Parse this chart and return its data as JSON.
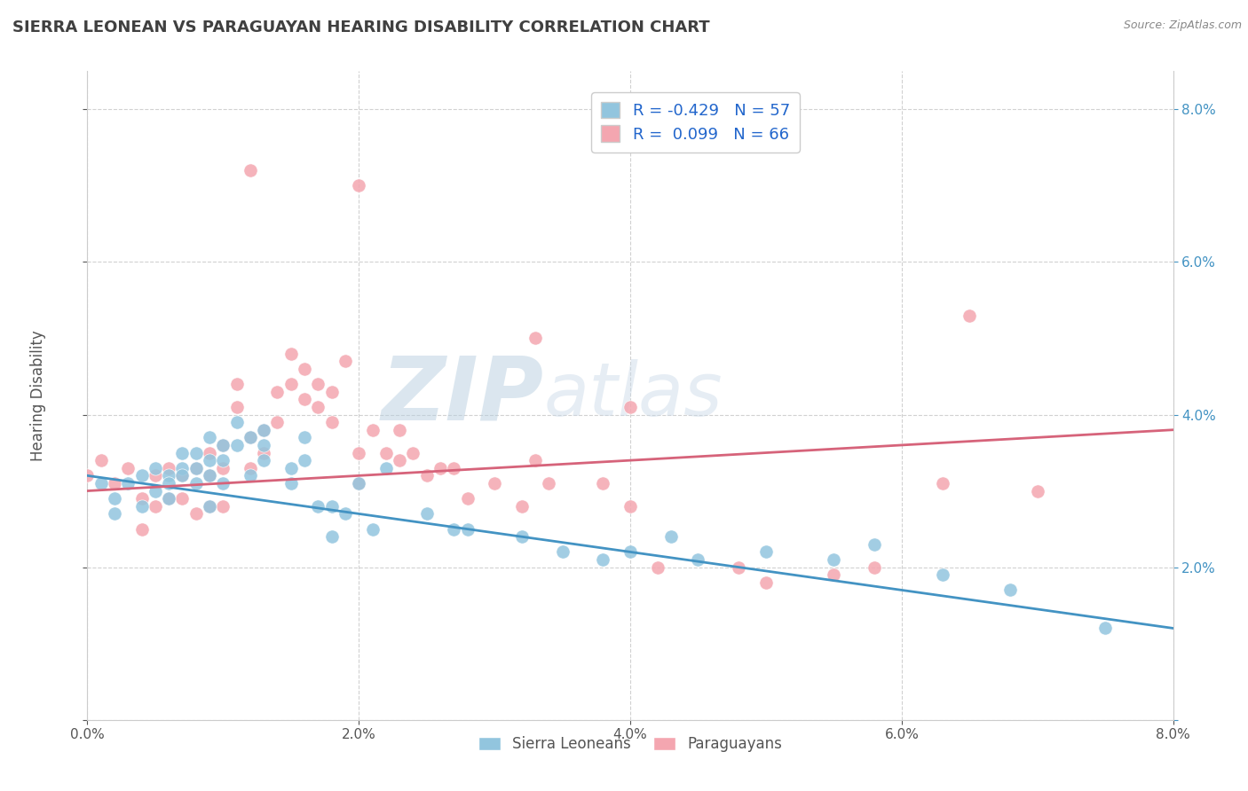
{
  "title": "SIERRA LEONEAN VS PARAGUAYAN HEARING DISABILITY CORRELATION CHART",
  "source": "Source: ZipAtlas.com",
  "ylabel": "Hearing Disability",
  "x_min": 0.0,
  "x_max": 0.08,
  "y_min": 0.0,
  "y_max": 0.085,
  "sierra_color": "#92c5de",
  "paraguayan_color": "#f4a6b0",
  "sierra_line_color": "#4393c3",
  "paraguayan_line_color": "#d6637a",
  "sierra_R": -0.429,
  "sierra_N": 57,
  "paraguayan_R": 0.099,
  "paraguayan_N": 66,
  "background_color": "#ffffff",
  "grid_color": "#cccccc",
  "title_color": "#404040",
  "watermark_color": "#c8d8e8",
  "sierra_x": [
    0.001,
    0.002,
    0.002,
    0.003,
    0.004,
    0.004,
    0.005,
    0.005,
    0.006,
    0.006,
    0.006,
    0.007,
    0.007,
    0.007,
    0.008,
    0.008,
    0.008,
    0.009,
    0.009,
    0.009,
    0.009,
    0.01,
    0.01,
    0.01,
    0.011,
    0.011,
    0.012,
    0.012,
    0.013,
    0.013,
    0.013,
    0.015,
    0.015,
    0.016,
    0.016,
    0.017,
    0.018,
    0.018,
    0.019,
    0.02,
    0.021,
    0.022,
    0.025,
    0.027,
    0.028,
    0.032,
    0.035,
    0.038,
    0.04,
    0.043,
    0.045,
    0.05,
    0.055,
    0.058,
    0.063,
    0.068,
    0.075
  ],
  "sierra_y": [
    0.031,
    0.029,
    0.027,
    0.031,
    0.032,
    0.028,
    0.033,
    0.03,
    0.032,
    0.031,
    0.029,
    0.035,
    0.033,
    0.032,
    0.035,
    0.033,
    0.031,
    0.037,
    0.034,
    0.032,
    0.028,
    0.036,
    0.034,
    0.031,
    0.039,
    0.036,
    0.037,
    0.032,
    0.038,
    0.036,
    0.034,
    0.033,
    0.031,
    0.037,
    0.034,
    0.028,
    0.028,
    0.024,
    0.027,
    0.031,
    0.025,
    0.033,
    0.027,
    0.025,
    0.025,
    0.024,
    0.022,
    0.021,
    0.022,
    0.024,
    0.021,
    0.022,
    0.021,
    0.023,
    0.019,
    0.017,
    0.012
  ],
  "paraguayan_x": [
    0.0,
    0.001,
    0.002,
    0.003,
    0.004,
    0.004,
    0.005,
    0.005,
    0.006,
    0.006,
    0.007,
    0.007,
    0.008,
    0.008,
    0.009,
    0.009,
    0.009,
    0.01,
    0.01,
    0.01,
    0.011,
    0.011,
    0.012,
    0.012,
    0.013,
    0.013,
    0.014,
    0.014,
    0.015,
    0.015,
    0.016,
    0.016,
    0.017,
    0.017,
    0.018,
    0.018,
    0.019,
    0.02,
    0.02,
    0.021,
    0.022,
    0.023,
    0.023,
    0.024,
    0.025,
    0.026,
    0.027,
    0.028,
    0.03,
    0.032,
    0.033,
    0.034,
    0.038,
    0.04,
    0.042,
    0.048,
    0.05,
    0.055,
    0.058,
    0.063,
    0.065,
    0.07,
    0.02,
    0.012,
    0.033,
    0.04
  ],
  "paraguayan_y": [
    0.032,
    0.034,
    0.031,
    0.033,
    0.029,
    0.025,
    0.032,
    0.028,
    0.033,
    0.029,
    0.032,
    0.029,
    0.033,
    0.027,
    0.035,
    0.032,
    0.028,
    0.036,
    0.033,
    0.028,
    0.044,
    0.041,
    0.037,
    0.033,
    0.038,
    0.035,
    0.043,
    0.039,
    0.048,
    0.044,
    0.046,
    0.042,
    0.044,
    0.041,
    0.043,
    0.039,
    0.047,
    0.035,
    0.031,
    0.038,
    0.035,
    0.038,
    0.034,
    0.035,
    0.032,
    0.033,
    0.033,
    0.029,
    0.031,
    0.028,
    0.034,
    0.031,
    0.031,
    0.028,
    0.02,
    0.02,
    0.018,
    0.019,
    0.02,
    0.031,
    0.053,
    0.03,
    0.07,
    0.072,
    0.05,
    0.041
  ]
}
